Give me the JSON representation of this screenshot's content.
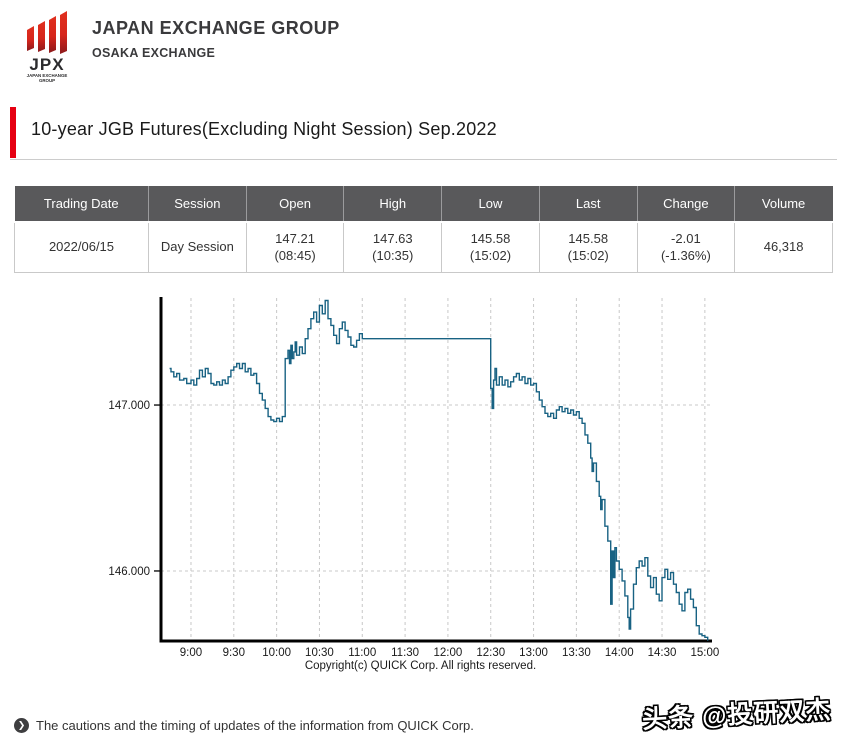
{
  "header": {
    "brand_title": "JAPAN EXCHANGE GROUP",
    "brand_subtitle": "OSAKA EXCHANGE",
    "logo": {
      "acronym": "JPX",
      "caption_line1": "JAPAN EXCHANGE",
      "caption_line2": "GROUP"
    }
  },
  "page_title": "10-year JGB Futures(Excluding Night Session) Sep.2022",
  "table": {
    "columns": [
      "Trading Date",
      "Session",
      "Open",
      "High",
      "Low",
      "Last",
      "Change",
      "Volume"
    ],
    "rows": [
      [
        [
          "2022/06/15"
        ],
        [
          "Day Session"
        ],
        [
          "147.21",
          "(08:45)"
        ],
        [
          "147.63",
          "(10:35)"
        ],
        [
          "145.58",
          "(15:02)"
        ],
        [
          "145.58",
          "(15:02)"
        ],
        [
          "-2.01",
          "(-1.36%)"
        ],
        [
          "46,318"
        ]
      ]
    ]
  },
  "chart_data": {
    "type": "line",
    "subtype": "step-after-intraday",
    "title": "",
    "xlabel": "",
    "ylabel": "",
    "line_color": "#186283",
    "grid_color": "#c8c8c8",
    "axis_color": "#000000",
    "grid": "dashed",
    "x_domain_time": [
      "8:39",
      "15:05"
    ],
    "y_domain": [
      145.578,
      147.645
    ],
    "x_ticks": [
      "9:00",
      "9:30",
      "10:00",
      "10:30",
      "11:00",
      "11:30",
      "12:00",
      "12:30",
      "13:00",
      "13:30",
      "14:00",
      "14:30",
      "15:00"
    ],
    "y_ticks": [
      {
        "label": "147.000",
        "value": 147.0
      },
      {
        "label": "146.000",
        "value": 146.0
      }
    ],
    "copyright": "Copyright(c) QUICK Corp. All rights reserved.",
    "series": [
      {
        "name": "10-year JGB Futures price",
        "points": [
          [
            "8:45",
            147.22
          ],
          [
            "8:46",
            147.2
          ],
          [
            "8:48",
            147.17
          ],
          [
            "8:50",
            147.19
          ],
          [
            "8:52",
            147.15
          ],
          [
            "8:55",
            147.16
          ],
          [
            "8:57",
            147.13
          ],
          [
            "9:00",
            147.15
          ],
          [
            "9:02",
            147.12
          ],
          [
            "9:04",
            147.16
          ],
          [
            "9:06",
            147.21
          ],
          [
            "9:08",
            147.17
          ],
          [
            "9:10",
            147.22
          ],
          [
            "9:12",
            147.19
          ],
          [
            "9:14",
            147.13
          ],
          [
            "9:16",
            147.12
          ],
          [
            "9:18",
            147.14
          ],
          [
            "9:20",
            147.12
          ],
          [
            "9:22",
            147.15
          ],
          [
            "9:24",
            147.13
          ],
          [
            "9:26",
            147.17
          ],
          [
            "9:28",
            147.21
          ],
          [
            "9:30",
            147.23
          ],
          [
            "9:32",
            147.25
          ],
          [
            "9:34",
            147.22
          ],
          [
            "9:36",
            147.25
          ],
          [
            "9:38",
            147.2
          ],
          [
            "9:40",
            147.22
          ],
          [
            "9:42",
            147.18
          ],
          [
            "9:44",
            147.19
          ],
          [
            "9:46",
            147.13
          ],
          [
            "9:48",
            147.07
          ],
          [
            "9:50",
            147.03
          ],
          [
            "9:52",
            146.98
          ],
          [
            "9:54",
            146.93
          ],
          [
            "9:56",
            146.91
          ],
          [
            "9:58",
            146.9
          ],
          [
            "10:00",
            146.92
          ],
          [
            "10:02",
            146.9
          ],
          [
            "10:04",
            146.93
          ],
          [
            "10:06",
            147.28
          ],
          [
            "10:08",
            147.33
          ],
          [
            "10:09",
            147.25
          ],
          [
            "10:10",
            147.36
          ],
          [
            "10:11",
            147.28
          ],
          [
            "10:12",
            147.32
          ],
          [
            "10:13",
            147.38
          ],
          [
            "10:14",
            147.3
          ],
          [
            "10:16",
            147.35
          ],
          [
            "10:18",
            147.31
          ],
          [
            "10:20",
            147.4
          ],
          [
            "10:22",
            147.46
          ],
          [
            "10:24",
            147.52
          ],
          [
            "10:26",
            147.56
          ],
          [
            "10:28",
            147.5
          ],
          [
            "10:30",
            147.6
          ],
          [
            "10:32",
            147.55
          ],
          [
            "10:34",
            147.63
          ],
          [
            "10:36",
            147.52
          ],
          [
            "10:38",
            147.48
          ],
          [
            "10:40",
            147.42
          ],
          [
            "10:42",
            147.37
          ],
          [
            "10:44",
            147.46
          ],
          [
            "10:46",
            147.5
          ],
          [
            "10:48",
            147.45
          ],
          [
            "10:50",
            147.41
          ],
          [
            "10:52",
            147.36
          ],
          [
            "10:54",
            147.35
          ],
          [
            "10:56",
            147.39
          ],
          [
            "10:58",
            147.43
          ],
          [
            "11:00",
            147.4
          ],
          [
            "12:30",
            147.1
          ],
          [
            "12:31",
            146.98
          ],
          [
            "12:32",
            147.15
          ],
          [
            "12:33",
            147.22
          ],
          [
            "12:34",
            147.12
          ],
          [
            "12:36",
            147.17
          ],
          [
            "12:38",
            147.12
          ],
          [
            "12:40",
            147.15
          ],
          [
            "12:42",
            147.11
          ],
          [
            "12:44",
            147.14
          ],
          [
            "12:46",
            147.17
          ],
          [
            "12:48",
            147.19
          ],
          [
            "12:50",
            147.15
          ],
          [
            "12:52",
            147.17
          ],
          [
            "12:54",
            147.13
          ],
          [
            "12:56",
            147.16
          ],
          [
            "12:58",
            147.12
          ],
          [
            "13:00",
            147.13
          ],
          [
            "13:02",
            147.08
          ],
          [
            "13:04",
            147.03
          ],
          [
            "13:06",
            146.99
          ],
          [
            "13:08",
            146.95
          ],
          [
            "13:10",
            146.93
          ],
          [
            "13:12",
            146.95
          ],
          [
            "13:14",
            146.92
          ],
          [
            "13:16",
            146.97
          ],
          [
            "13:18",
            146.99
          ],
          [
            "13:20",
            146.96
          ],
          [
            "13:22",
            146.98
          ],
          [
            "13:24",
            146.95
          ],
          [
            "13:26",
            146.97
          ],
          [
            "13:28",
            146.94
          ],
          [
            "13:30",
            146.96
          ],
          [
            "13:32",
            146.92
          ],
          [
            "13:34",
            146.89
          ],
          [
            "13:36",
            146.82
          ],
          [
            "13:38",
            146.77
          ],
          [
            "13:40",
            146.68
          ],
          [
            "13:41",
            146.6
          ],
          [
            "13:42",
            146.65
          ],
          [
            "13:44",
            146.54
          ],
          [
            "13:46",
            146.45
          ],
          [
            "13:47",
            146.37
          ],
          [
            "13:48",
            146.43
          ],
          [
            "13:50",
            146.27
          ],
          [
            "13:52",
            146.18
          ],
          [
            "13:54",
            145.8
          ],
          [
            "13:55",
            146.12
          ],
          [
            "13:56",
            145.96
          ],
          [
            "13:57",
            146.14
          ],
          [
            "13:58",
            146.06
          ],
          [
            "14:00",
            146.01
          ],
          [
            "14:02",
            145.94
          ],
          [
            "14:04",
            145.85
          ],
          [
            "14:06",
            145.72
          ],
          [
            "14:07",
            145.65
          ],
          [
            "14:08",
            145.77
          ],
          [
            "14:10",
            145.92
          ],
          [
            "14:12",
            146.02
          ],
          [
            "14:14",
            146.06
          ],
          [
            "14:16",
            146.03
          ],
          [
            "14:18",
            146.08
          ],
          [
            "14:20",
            145.97
          ],
          [
            "14:22",
            145.9
          ],
          [
            "14:24",
            145.96
          ],
          [
            "14:26",
            145.86
          ],
          [
            "14:28",
            145.82
          ],
          [
            "14:30",
            145.96
          ],
          [
            "14:32",
            146.01
          ],
          [
            "14:34",
            145.95
          ],
          [
            "14:36",
            145.99
          ],
          [
            "14:38",
            145.92
          ],
          [
            "14:40",
            145.87
          ],
          [
            "14:42",
            145.8
          ],
          [
            "14:44",
            145.76
          ],
          [
            "14:46",
            145.87
          ],
          [
            "14:48",
            145.89
          ],
          [
            "14:50",
            145.83
          ],
          [
            "14:52",
            145.78
          ],
          [
            "14:54",
            145.67
          ],
          [
            "14:56",
            145.62
          ],
          [
            "14:58",
            145.61
          ],
          [
            "15:00",
            145.6
          ],
          [
            "15:02",
            145.58
          ]
        ]
      }
    ]
  },
  "footer": {
    "link_text": "The cautions and the timing of updates of the information from QUICK Corp.",
    "chevron": "❯",
    "watermark": "头条 @投研双杰"
  },
  "colors": {
    "accent_red": "#e60012",
    "table_header_bg": "#59595b",
    "line": "#186283"
  }
}
